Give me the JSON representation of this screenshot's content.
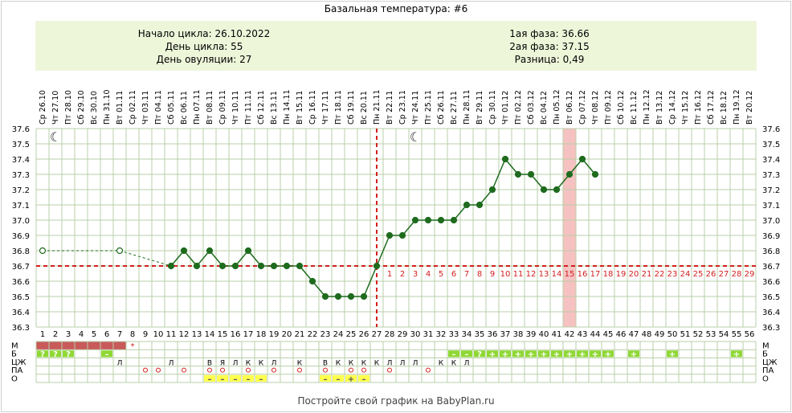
{
  "title": "Базальная температура: #6",
  "info": {
    "left": [
      "Начало цикла: 26.10.2022",
      "День цикла: 55",
      "День овуляции: 27"
    ],
    "right": [
      "1ая фаза: 36.66",
      "2ая фаза: 37.15",
      "Разница: 0,49"
    ]
  },
  "footer": "Постройте свой график на BabyPlan.ru",
  "colors": {
    "line": "#1e6b1e",
    "grid": "#b9cfa8",
    "coverline": "#d21f1f",
    "ovulation": "#d21f1f",
    "highlight": "#f6c1c1",
    "green_box": "#8fd834",
    "yellow_box": "#ffff4d",
    "red_box": "#c85a5a"
  },
  "chart_data": {
    "type": "line",
    "ylim": [
      36.3,
      37.6
    ],
    "yticks": [
      "37.6",
      "37.5",
      "37.4",
      "37.3",
      "37.2",
      "37.1",
      "37.0",
      "36.9",
      "36.8",
      "36.7",
      "36.6",
      "36.5",
      "36.4",
      "36.3"
    ],
    "dates": [
      "Ср 26.10",
      "Чт 27.10",
      "Пт 28.10",
      "Сб 29.10",
      "Вс 30.10",
      "Пн 31.10",
      "Вт 01.11",
      "Ср 02.11",
      "Чт 03.11",
      "Пт 04.11",
      "Сб 05.11",
      "Вс 06.11",
      "Пн 07.11",
      "Вт 08.11",
      "Ср 09.11",
      "Чт 10.11",
      "Пт 11.11",
      "Сб 12.11",
      "Вс 13.11",
      "Пн 14.11",
      "Вт 15.11",
      "Ср 16.11",
      "Чт 17.11",
      "Пт 18.11",
      "Сб 19.11",
      "Вс 20.11",
      "Пн 21.11",
      "Вт 22.11",
      "Ср 23.11",
      "Чт 24.11",
      "Пт 25.11",
      "Сб 26.11",
      "Вс 27.11",
      "Пн 28.11",
      "Вт 29.11",
      "Ср 30.11",
      "Чт 01.12",
      "Пт 02.12",
      "Сб 03.12",
      "Вс 04.12",
      "Пн 05.12",
      "Вт 06.12",
      "Ср 07.12",
      "Чт 08.12",
      "Пт 09.12",
      "Сб 10.12",
      "Вс 11.12",
      "Пн 12.12",
      "Вт 13.12",
      "Ср 14.12",
      "Чт 15.12",
      "Пт 16.12",
      "Сб 17.12",
      "Вс 18.12",
      "Пн 19.12",
      "Вт 20.12"
    ],
    "days": [
      "1",
      "2",
      "3",
      "4",
      "5",
      "6",
      "7",
      "8",
      "9",
      "10",
      "11",
      "12",
      "13",
      "14",
      "15",
      "16",
      "17",
      "18",
      "19",
      "20",
      "21",
      "22",
      "23",
      "24",
      "25",
      "26",
      "27",
      "28",
      "29",
      "30",
      "31",
      "32",
      "33",
      "34",
      "35",
      "36",
      "37",
      "38",
      "39",
      "40",
      "41",
      "42",
      "43",
      "44",
      "45",
      "46",
      "47",
      "48",
      "49",
      "50",
      "51",
      "52",
      "53",
      "54",
      "55",
      "56"
    ],
    "temps": [
      36.8,
      null,
      null,
      null,
      null,
      null,
      36.8,
      null,
      null,
      null,
      36.7,
      36.8,
      36.7,
      36.8,
      36.7,
      36.7,
      36.8,
      36.7,
      36.7,
      36.7,
      36.7,
      36.6,
      36.5,
      36.5,
      36.5,
      36.5,
      36.7,
      36.9,
      36.9,
      37.0,
      37.0,
      37.0,
      37.0,
      37.1,
      37.1,
      37.2,
      37.4,
      37.3,
      37.3,
      37.2,
      37.2,
      37.3,
      37.4,
      37.3,
      null,
      null,
      null,
      null,
      null,
      null,
      null,
      null,
      null,
      null,
      null,
      null
    ],
    "hollow_days": [
      1,
      7
    ],
    "dashed_until_day": 11,
    "coverline": 36.7,
    "ovulation_day": 27,
    "highlight_day": 42,
    "luteal_labels": [
      "1",
      "2",
      "3",
      "4",
      "5",
      "6",
      "7",
      "8",
      "9",
      "10",
      "11",
      "12",
      "13",
      "14",
      "15",
      "16",
      "17",
      "18",
      "19",
      "20",
      "21",
      "22",
      "23",
      "24",
      "25",
      "26",
      "27",
      "28",
      "29"
    ],
    "moon_days": [
      2,
      30
    ],
    "rows": {
      "labels": [
        "М",
        "Б",
        "ЦЖ",
        "ПА",
        "О"
      ],
      "M": {
        "red": [
          1,
          2,
          3,
          4,
          5,
          6,
          7
        ],
        "star_day": 8
      },
      "B": [
        [
          1,
          "?",
          "g"
        ],
        [
          2,
          "?",
          "g"
        ],
        [
          3,
          "?",
          "g"
        ],
        [
          6,
          "–",
          "g"
        ],
        [
          33,
          "–",
          "g"
        ],
        [
          34,
          "–",
          "g"
        ],
        [
          35,
          "?",
          "g"
        ],
        [
          36,
          "+",
          "g"
        ],
        [
          37,
          "+",
          "g"
        ],
        [
          38,
          "+",
          "g"
        ],
        [
          39,
          "+",
          "g"
        ],
        [
          40,
          "+",
          "g"
        ],
        [
          41,
          "+",
          "g"
        ],
        [
          42,
          "+",
          "g"
        ],
        [
          43,
          "+",
          "g"
        ],
        [
          44,
          "+",
          "g"
        ],
        [
          45,
          "+",
          "g"
        ],
        [
          47,
          "+",
          "g"
        ],
        [
          50,
          "+",
          "g"
        ],
        [
          55,
          "+",
          "g"
        ]
      ],
      "CZH": [
        [
          7,
          "Л"
        ],
        [
          11,
          "Л"
        ],
        [
          14,
          "В"
        ],
        [
          15,
          "Я"
        ],
        [
          16,
          "Л"
        ],
        [
          17,
          "К"
        ],
        [
          18,
          "К"
        ],
        [
          19,
          "Л"
        ],
        [
          21,
          "К"
        ],
        [
          23,
          "В"
        ],
        [
          24,
          "К"
        ],
        [
          25,
          "К"
        ],
        [
          26,
          "К"
        ],
        [
          27,
          "К"
        ],
        [
          28,
          "Л"
        ],
        [
          29,
          "Л"
        ],
        [
          30,
          "Л"
        ],
        [
          32,
          "К"
        ],
        [
          33,
          "К"
        ],
        [
          34,
          "Л"
        ]
      ],
      "PA": [
        9,
        10,
        12,
        14,
        15,
        17,
        19,
        21,
        23,
        25,
        26,
        28,
        31
      ],
      "O": [
        [
          14,
          "–",
          "y"
        ],
        [
          15,
          "–",
          "y"
        ],
        [
          16,
          "–",
          "y"
        ],
        [
          17,
          "–",
          "y"
        ],
        [
          18,
          "–",
          "y"
        ],
        [
          23,
          "–",
          "y"
        ],
        [
          24,
          "–",
          "y"
        ],
        [
          25,
          "+",
          "y"
        ],
        [
          26,
          "–",
          "y"
        ]
      ]
    }
  }
}
